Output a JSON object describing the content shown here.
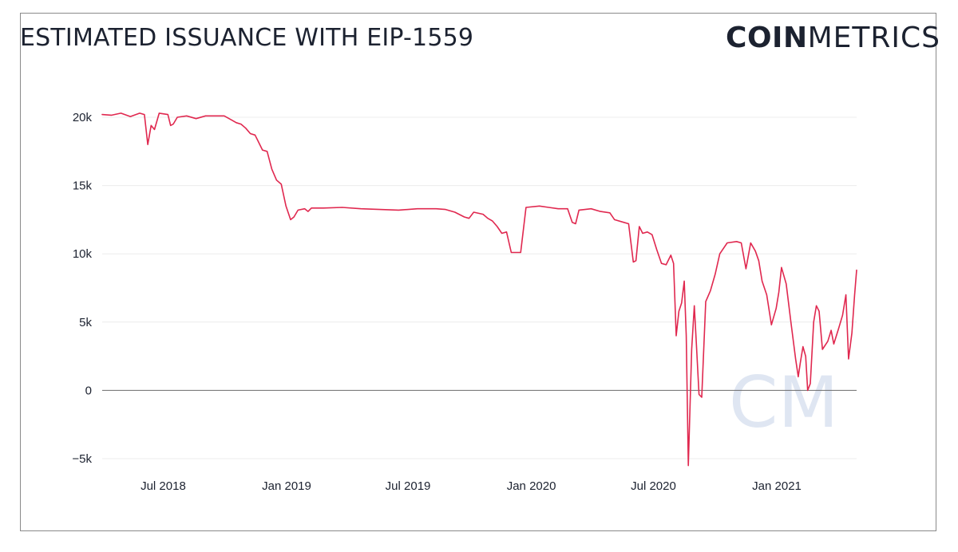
{
  "header": {
    "title": "ESTIMATED ISSUANCE WITH EIP-1559",
    "logo_bold": "COIN",
    "logo_light": "METRICS",
    "watermark": "CM"
  },
  "chart_data": {
    "type": "line",
    "title": "ESTIMATED ISSUANCE WITH EIP-1559",
    "xlabel": "",
    "ylabel": "",
    "grid": true,
    "legend": "none",
    "ylim": [
      -5000,
      20000
    ],
    "xlim": [
      "2018-04-01",
      "2021-04-30"
    ],
    "y_ticks": [
      {
        "value": 20000,
        "label": "20k"
      },
      {
        "value": 15000,
        "label": "15k"
      },
      {
        "value": 10000,
        "label": "10k"
      },
      {
        "value": 5000,
        "label": "5k"
      },
      {
        "value": 0,
        "label": "0"
      },
      {
        "value": -5000,
        "label": "−5k"
      }
    ],
    "x_ticks": [
      {
        "value": "2018-07-01",
        "label": "Jul 2018"
      },
      {
        "value": "2019-01-01",
        "label": "Jan 2019"
      },
      {
        "value": "2019-07-01",
        "label": "Jul 2019"
      },
      {
        "value": "2020-01-01",
        "label": "Jan 2020"
      },
      {
        "value": "2020-07-01",
        "label": "Jul 2020"
      },
      {
        "value": "2021-01-01",
        "label": "Jan 2021"
      }
    ],
    "series": [
      {
        "color": "#e0284f",
        "points": [
          [
            "2018-04-01",
            20200
          ],
          [
            "2018-04-15",
            20150
          ],
          [
            "2018-04-29",
            20300
          ],
          [
            "2018-05-13",
            20050
          ],
          [
            "2018-05-27",
            20300
          ],
          [
            "2018-06-03",
            20200
          ],
          [
            "2018-06-08",
            18000
          ],
          [
            "2018-06-13",
            19400
          ],
          [
            "2018-06-18",
            19100
          ],
          [
            "2018-06-25",
            20300
          ],
          [
            "2018-07-08",
            20200
          ],
          [
            "2018-07-12",
            19400
          ],
          [
            "2018-07-16",
            19500
          ],
          [
            "2018-07-22",
            20000
          ],
          [
            "2018-08-05",
            20100
          ],
          [
            "2018-08-19",
            19900
          ],
          [
            "2018-09-02",
            20100
          ],
          [
            "2018-09-16",
            20100
          ],
          [
            "2018-09-30",
            20100
          ],
          [
            "2018-10-11",
            19800
          ],
          [
            "2018-10-18",
            19600
          ],
          [
            "2018-10-25",
            19500
          ],
          [
            "2018-11-01",
            19200
          ],
          [
            "2018-11-08",
            18800
          ],
          [
            "2018-11-15",
            18700
          ],
          [
            "2018-11-19",
            18300
          ],
          [
            "2018-11-26",
            17600
          ],
          [
            "2018-12-03",
            17500
          ],
          [
            "2018-12-10",
            16200
          ],
          [
            "2018-12-17",
            15400
          ],
          [
            "2018-12-24",
            15100
          ],
          [
            "2018-12-31",
            13500
          ],
          [
            "2019-01-07",
            12500
          ],
          [
            "2019-01-12",
            12700
          ],
          [
            "2019-01-18",
            13200
          ],
          [
            "2019-01-28",
            13300
          ],
          [
            "2019-02-02",
            13100
          ],
          [
            "2019-02-07",
            13350
          ],
          [
            "2019-02-25",
            13350
          ],
          [
            "2019-03-25",
            13400
          ],
          [
            "2019-04-22",
            13300
          ],
          [
            "2019-05-20",
            13250
          ],
          [
            "2019-06-17",
            13200
          ],
          [
            "2019-07-15",
            13300
          ],
          [
            "2019-08-12",
            13300
          ],
          [
            "2019-08-26",
            13250
          ],
          [
            "2019-09-09",
            13050
          ],
          [
            "2019-09-23",
            12700
          ],
          [
            "2019-09-30",
            12600
          ],
          [
            "2019-10-07",
            13050
          ],
          [
            "2019-10-21",
            12900
          ],
          [
            "2019-10-28",
            12600
          ],
          [
            "2019-11-04",
            12400
          ],
          [
            "2019-11-11",
            12000
          ],
          [
            "2019-11-18",
            11500
          ],
          [
            "2019-11-25",
            11600
          ],
          [
            "2019-12-02",
            10100
          ],
          [
            "2019-12-16",
            10100
          ],
          [
            "2019-12-24",
            13400
          ],
          [
            "2020-01-13",
            13500
          ],
          [
            "2020-01-27",
            13400
          ],
          [
            "2020-02-10",
            13300
          ],
          [
            "2020-02-24",
            13300
          ],
          [
            "2020-03-02",
            12300
          ],
          [
            "2020-03-07",
            12200
          ],
          [
            "2020-03-12",
            13200
          ],
          [
            "2020-03-30",
            13300
          ],
          [
            "2020-04-13",
            13100
          ],
          [
            "2020-04-27",
            13000
          ],
          [
            "2020-05-04",
            12500
          ],
          [
            "2020-05-18",
            12300
          ],
          [
            "2020-05-25",
            12200
          ],
          [
            "2020-06-01",
            9400
          ],
          [
            "2020-06-05",
            9500
          ],
          [
            "2020-06-10",
            12000
          ],
          [
            "2020-06-15",
            11500
          ],
          [
            "2020-06-22",
            11600
          ],
          [
            "2020-06-29",
            11400
          ],
          [
            "2020-07-06",
            10300
          ],
          [
            "2020-07-13",
            9300
          ],
          [
            "2020-07-20",
            9200
          ],
          [
            "2020-07-27",
            9900
          ],
          [
            "2020-07-31",
            9300
          ],
          [
            "2020-08-04",
            4000
          ],
          [
            "2020-08-08",
            5800
          ],
          [
            "2020-08-12",
            6400
          ],
          [
            "2020-08-16",
            8000
          ],
          [
            "2020-08-19",
            4000
          ],
          [
            "2020-08-22",
            -5500
          ],
          [
            "2020-08-27",
            3000
          ],
          [
            "2020-08-31",
            6200
          ],
          [
            "2020-09-03",
            3500
          ],
          [
            "2020-09-07",
            -300
          ],
          [
            "2020-09-11",
            -500
          ],
          [
            "2020-09-17",
            6500
          ],
          [
            "2020-09-24",
            7300
          ],
          [
            "2020-10-01",
            8500
          ],
          [
            "2020-10-08",
            10000
          ],
          [
            "2020-10-19",
            10800
          ],
          [
            "2020-11-02",
            10900
          ],
          [
            "2020-11-09",
            10800
          ],
          [
            "2020-11-16",
            8900
          ],
          [
            "2020-11-23",
            10800
          ],
          [
            "2020-11-30",
            10200
          ],
          [
            "2020-12-05",
            9500
          ],
          [
            "2020-12-10",
            8000
          ],
          [
            "2020-12-17",
            7000
          ],
          [
            "2020-12-24",
            4800
          ],
          [
            "2020-12-31",
            6000
          ],
          [
            "2021-01-04",
            7200
          ],
          [
            "2021-01-08",
            9000
          ],
          [
            "2021-01-15",
            7800
          ],
          [
            "2021-01-22",
            5000
          ],
          [
            "2021-01-29",
            2300
          ],
          [
            "2021-02-02",
            1000
          ],
          [
            "2021-02-05",
            2000
          ],
          [
            "2021-02-09",
            3200
          ],
          [
            "2021-02-13",
            2500
          ],
          [
            "2021-02-16",
            0
          ],
          [
            "2021-02-20",
            500
          ],
          [
            "2021-02-25",
            5000
          ],
          [
            "2021-03-01",
            6200
          ],
          [
            "2021-03-05",
            5800
          ],
          [
            "2021-03-10",
            3000
          ],
          [
            "2021-03-18",
            3600
          ],
          [
            "2021-03-23",
            4400
          ],
          [
            "2021-03-27",
            3400
          ],
          [
            "2021-04-03",
            4500
          ],
          [
            "2021-04-09",
            5500
          ],
          [
            "2021-04-14",
            7000
          ],
          [
            "2021-04-18",
            2300
          ],
          [
            "2021-04-23",
            4200
          ],
          [
            "2021-04-27",
            7000
          ],
          [
            "2021-04-30",
            8800
          ]
        ]
      }
    ]
  }
}
